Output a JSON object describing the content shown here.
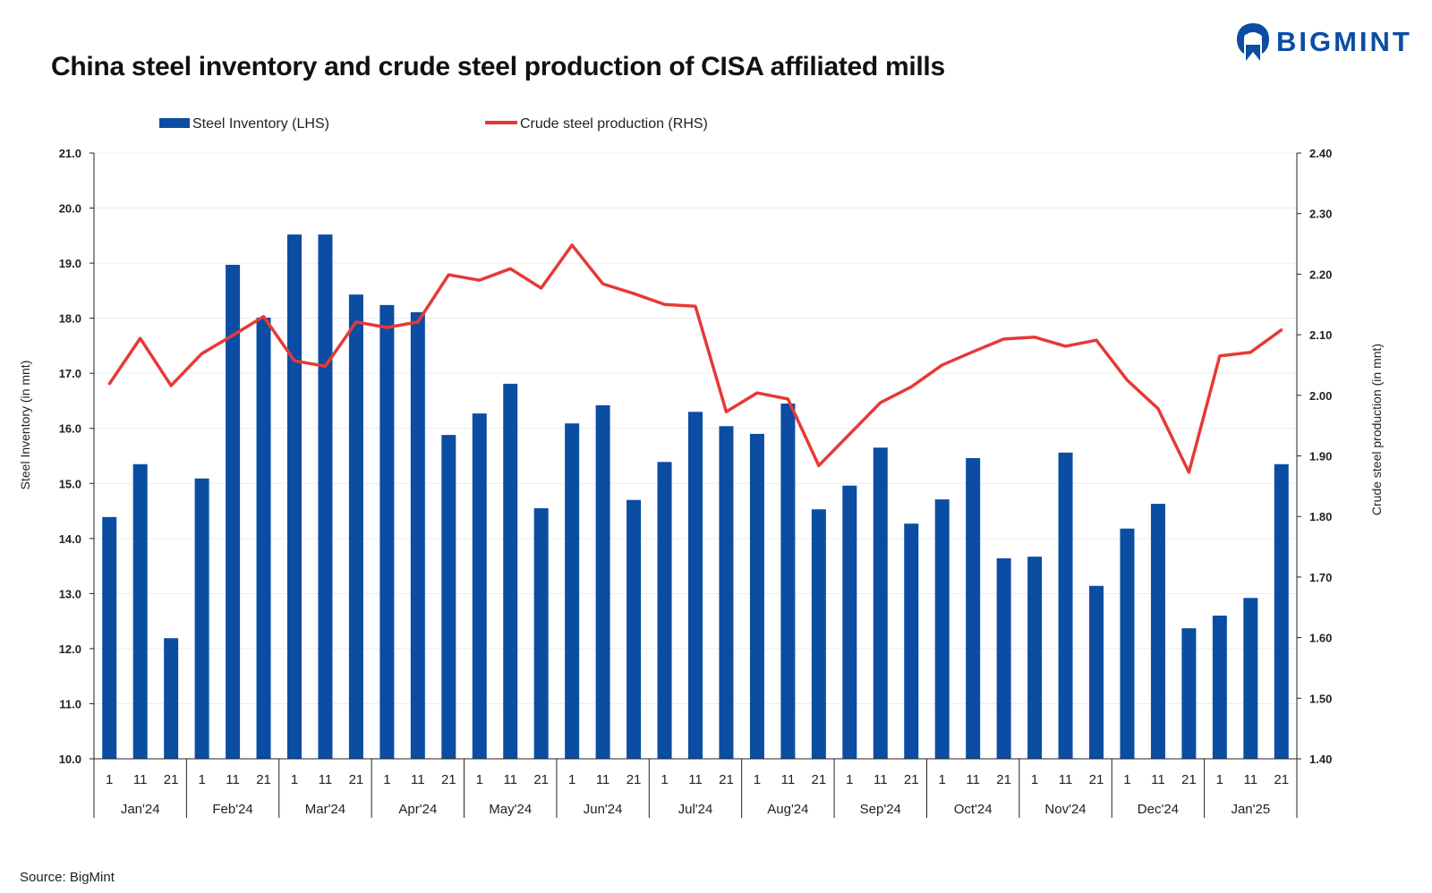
{
  "title": "China steel inventory and crude steel production of CISA affiliated mills",
  "logo_text": "BIGMINT",
  "source": "Source: BigMint",
  "colors": {
    "bar": "#0b4da2",
    "line": "#e63936",
    "brand": "#0b4da2"
  },
  "chart_data": {
    "type": "bar+line",
    "title": "China steel inventory and crude steel production of CISA affiliated mills",
    "legend": [
      "Steel Inventory (LHS)",
      "Crude steel production (RHS)"
    ],
    "legend_position": "top",
    "ylabel": "Steel Inventory (in mnt)",
    "y2label": "Crude steel production (in mnt)",
    "ylim": [
      10,
      21
    ],
    "yticks": [
      "10.0",
      "11.0",
      "12.0",
      "13.0",
      "14.0",
      "15.0",
      "16.0",
      "17.0",
      "18.0",
      "19.0",
      "20.0",
      "21.0"
    ],
    "y2lim": [
      1.4,
      2.4
    ],
    "y2ticks": [
      "1.40",
      "1.50",
      "1.60",
      "1.70",
      "1.80",
      "1.90",
      "2.00",
      "2.10",
      "2.20",
      "2.30",
      "2.40"
    ],
    "months": [
      "Jan'24",
      "Feb'24",
      "Mar'24",
      "Apr'24",
      "May'24",
      "Jun'24",
      "Jul'24",
      "Aug'24",
      "Sep'24",
      "Oct'24",
      "Nov'24",
      "Dec'24",
      "Jan'25"
    ],
    "days": [
      "1",
      "11",
      "21"
    ],
    "grid": true,
    "series": [
      {
        "name": "Steel Inventory (LHS)",
        "type": "bar",
        "axis": "left",
        "values": [
          14.39,
          15.35,
          12.19,
          15.09,
          18.97,
          18.01,
          19.52,
          19.52,
          18.43,
          18.24,
          18.11,
          15.88,
          16.27,
          16.81,
          14.55,
          16.09,
          16.42,
          14.7,
          15.39,
          16.3,
          16.04,
          15.9,
          16.45,
          14.53,
          14.96,
          15.65,
          14.27,
          14.71,
          15.46,
          13.64,
          13.67,
          15.56,
          13.14,
          14.18,
          14.63,
          12.37,
          12.6,
          12.92,
          15.35
        ]
      },
      {
        "name": "Crude steel production (RHS)",
        "type": "line",
        "axis": "right",
        "values": [
          2.019,
          2.094,
          2.016,
          2.069,
          2.099,
          2.13,
          2.057,
          2.048,
          2.121,
          2.112,
          2.121,
          2.199,
          2.19,
          2.209,
          2.177,
          2.248,
          2.184,
          2.168,
          2.15,
          2.147,
          1.973,
          2.004,
          1.994,
          1.884,
          1.936,
          1.988,
          2.014,
          2.05,
          2.072,
          2.093,
          2.096,
          2.081,
          2.091,
          2.025,
          1.978,
          1.873,
          2.065,
          2.071,
          2.108
        ]
      }
    ]
  }
}
